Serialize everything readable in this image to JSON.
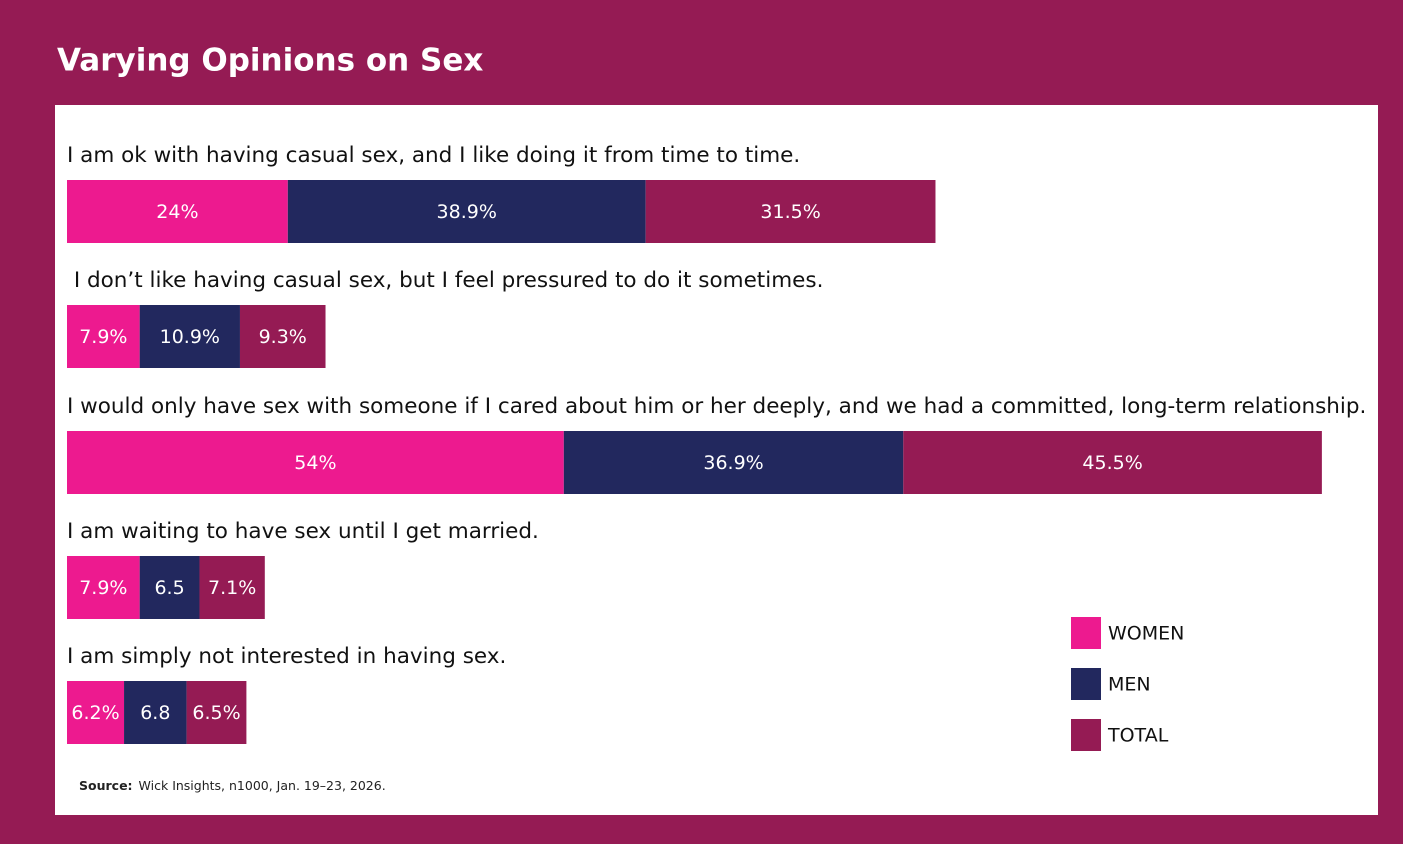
{
  "chart_data": {
    "type": "stacked_bar_horizontal",
    "title": "Varying Opinions on Sex",
    "categories": [
      "I am ok with having casual sex, and I like doing it from time to time.",
      " I don’t like having casual sex, but I feel pressured to do it sometimes.",
      "I would only have sex with someone if I cared about him or her deeply, and we had a committed, long-term relationship.",
      "I am waiting to have sex until I get married.",
      "I am simply not interested in having sex."
    ],
    "series": [
      {
        "name": "WOMEN",
        "color": "#ed1a8f",
        "values": [
          24,
          7.9,
          54,
          7.9,
          6.2
        ],
        "value_labels": [
          "24%",
          "7.9%",
          "54%",
          "7.9%",
          "6.2%"
        ]
      },
      {
        "name": "MEN",
        "color": "#22285e",
        "values": [
          38.9,
          10.9,
          36.9,
          6.5,
          6.8
        ],
        "value_labels": [
          "38.9%",
          "10.9%",
          "36.9%",
          "6.5",
          "6.8"
        ]
      },
      {
        "name": "TOTAL",
        "color": "#951b54",
        "values": [
          31.5,
          9.3,
          45.5,
          7.1,
          6.5
        ],
        "value_labels": [
          "31.5%",
          "9.3%",
          "45.5%",
          "7.1%",
          "6.5%"
        ]
      }
    ],
    "legend": "bottom-right",
    "source_label": "Source:",
    "source": "Wick Insights, n1000, Jan. 19–23, 2026."
  }
}
